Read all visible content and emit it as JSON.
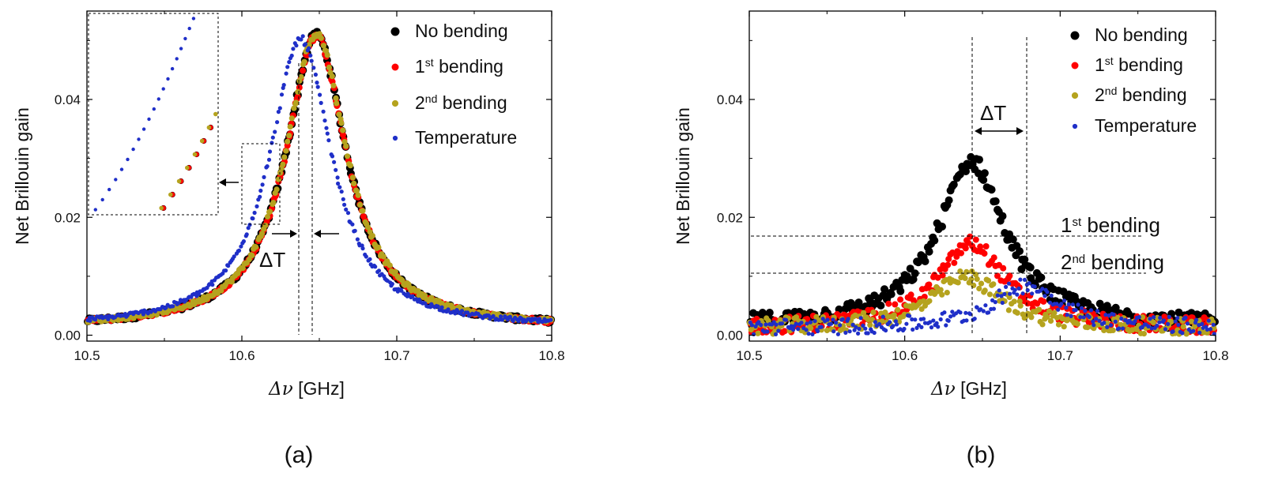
{
  "colors": {
    "no_bending": "#000000",
    "first_bending": "#ff0000",
    "second_bending": "#b5a31e",
    "temperature": "#1f2fc8"
  },
  "chart_data": [
    {
      "type": "scatter",
      "panel_label": "(a)",
      "xlabel_symbol": "Δν",
      "xlabel_unit": "[GHz]",
      "ylabel": "Net Brillouin gain",
      "xlim": [
        10.5,
        10.8
      ],
      "ylim": [
        -0.001,
        0.055
      ],
      "xticks": [
        "10.5",
        "10.6",
        "10.7",
        "10.8"
      ],
      "yticks": [
        "0.00",
        "0.02",
        "0.04"
      ],
      "series": [
        {
          "name": "No bending",
          "center": 10.648,
          "width": 0.024,
          "peak": 0.051,
          "baseline": 0.0012
        },
        {
          "name": "1st bending",
          "center": 10.648,
          "width": 0.024,
          "peak": 0.0508,
          "baseline": 0.0012
        },
        {
          "name": "2nd bending",
          "center": 10.648,
          "width": 0.0242,
          "peak": 0.0512,
          "baseline": 0.0012
        },
        {
          "name": "Temperature",
          "center": 10.638,
          "width": 0.0245,
          "peak": 0.0503,
          "baseline": 0.0012
        }
      ],
      "legend": [
        {
          "base": "No bending",
          "sup": ""
        },
        {
          "base": "1",
          "sup": "st",
          "rest": " bending"
        },
        {
          "base": "2",
          "sup": "nd",
          "rest": " bending"
        },
        {
          "base": "Temperature",
          "sup": ""
        }
      ],
      "annotations": {
        "delta_t": "ΔT"
      }
    },
    {
      "type": "scatter",
      "panel_label": "(b)",
      "xlabel_symbol": "Δν",
      "xlabel_unit": "[GHz]",
      "ylabel": "Net Brillouin gain",
      "xlim": [
        10.5,
        10.8
      ],
      "ylim": [
        -0.001,
        0.055
      ],
      "xticks": [
        "10.5",
        "10.6",
        "10.7",
        "10.8"
      ],
      "yticks": [
        "0.00",
        "0.02",
        "0.04"
      ],
      "series": [
        {
          "name": "No bending",
          "center": 10.643,
          "width": 0.026,
          "peak": 0.0295,
          "baseline": 0.0015
        },
        {
          "name": "1st bending",
          "center": 10.643,
          "width": 0.026,
          "peak": 0.0155,
          "baseline": 0.0012
        },
        {
          "name": "2nd bending",
          "center": 10.64,
          "width": 0.027,
          "peak": 0.0098,
          "baseline": 0.0012
        },
        {
          "name": "Temperature",
          "center": 10.678,
          "width": 0.026,
          "peak": 0.0085,
          "baseline": 0.0012
        }
      ],
      "legend": [
        {
          "base": "No bending",
          "sup": ""
        },
        {
          "base": "1",
          "sup": "st",
          "rest": " bending"
        },
        {
          "base": "2",
          "sup": "nd",
          "rest": " bending"
        },
        {
          "base": "Temperature",
          "sup": ""
        }
      ],
      "annotations": {
        "delta_t": "ΔT",
        "first_level": {
          "base": "1",
          "sup": "st",
          "rest": " bending",
          "y": 0.016
        },
        "second_level": {
          "base": "2",
          "sup": "nd",
          "rest": " bending",
          "y": 0.0098
        },
        "vlines_x": [
          10.643,
          10.678
        ]
      }
    }
  ]
}
